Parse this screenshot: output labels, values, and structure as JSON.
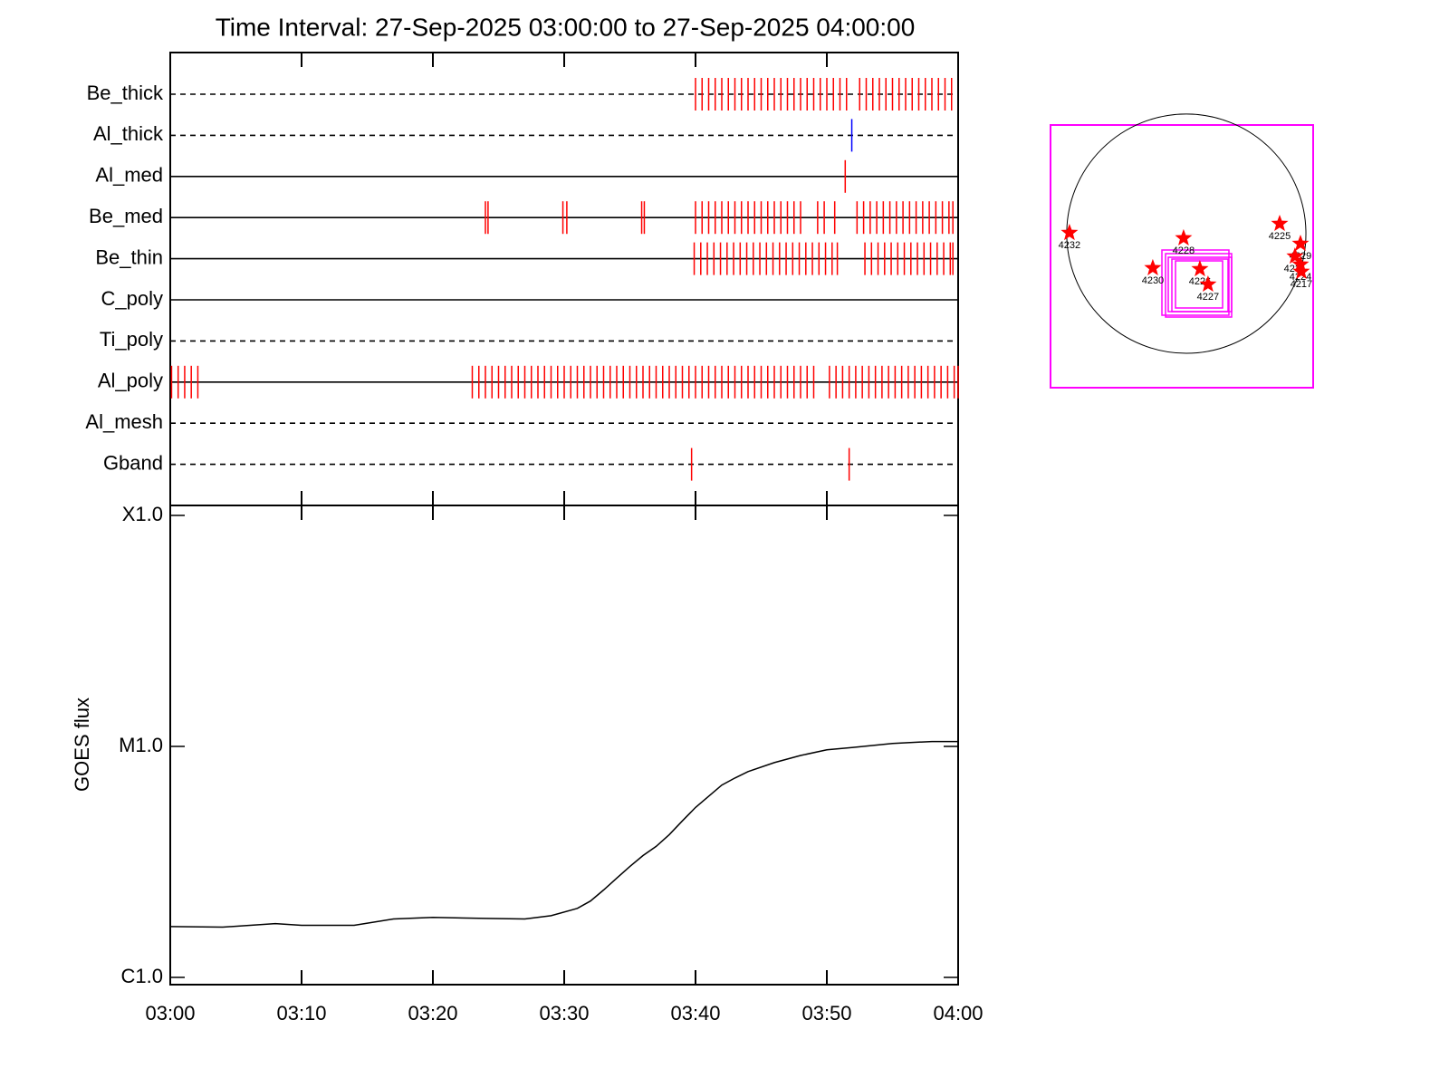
{
  "chart_data": [
    {
      "type": "events",
      "title": "Time Interval: 27-Sep-2025 03:00:00 to 27-Sep-2025 04:00:00",
      "xlim": [
        0,
        60
      ],
      "categories": [
        "Be_thick",
        "Al_thick",
        "Al_med",
        "Be_med",
        "Be_thin",
        "C_poly",
        "Ti_poly",
        "Al_poly",
        "Al_mesh",
        "Gband"
      ],
      "line_styles": [
        "dashed",
        "dashed",
        "solid",
        "solid",
        "solid",
        "solid",
        "dashed",
        "solid",
        "dashed",
        "dashed"
      ],
      "events": [
        {
          "color": "#ff0000",
          "values": [
            40,
            40.5,
            41,
            41.5,
            42,
            42.5,
            43,
            43.5,
            44,
            44.5,
            45,
            45.5,
            46,
            46.5,
            47,
            47.5,
            48,
            48.5,
            49,
            49.5,
            50,
            50.5,
            51,
            51.5,
            52.5,
            53,
            53.5,
            54,
            54.5,
            55,
            55.5,
            56,
            56.5,
            57,
            57.5,
            58,
            58.5,
            59,
            59.5
          ]
        },
        {
          "color": "#0000ff",
          "values": [
            51.9
          ]
        },
        {
          "color": "#ff0000",
          "values": [
            51.4
          ]
        },
        {
          "color": "#ff0000",
          "values": [
            24,
            24.2,
            29.9,
            30.2,
            35.9,
            36.1,
            40,
            40.5,
            41,
            41.5,
            42,
            42.5,
            43,
            43.5,
            44,
            44.5,
            45,
            45.5,
            46,
            46.5,
            47,
            47.5,
            48,
            49.3,
            49.8,
            50.6,
            52.3,
            52.8,
            53.3,
            53.8,
            54.3,
            54.8,
            55.3,
            55.8,
            56.3,
            56.8,
            57.3,
            57.8,
            58.3,
            58.8,
            59.3,
            59.6
          ]
        },
        {
          "color": "#ff0000",
          "values": [
            39.9,
            40.4,
            40.9,
            41.4,
            41.9,
            42.4,
            42.9,
            43.4,
            43.9,
            44.4,
            44.9,
            45.4,
            45.9,
            46.4,
            46.9,
            47.4,
            47.9,
            48.4,
            48.9,
            49.4,
            49.9,
            50.4,
            50.8,
            52.9,
            53.4,
            53.9,
            54.4,
            54.9,
            55.4,
            55.9,
            56.4,
            56.9,
            57.4,
            57.9,
            58.4,
            58.9,
            59.4,
            59.6
          ]
        },
        {
          "color": "#ff0000",
          "values": []
        },
        {
          "color": "#ff0000",
          "values": []
        },
        {
          "color": "#ff0000",
          "values": [
            0.1,
            0.6,
            1.1,
            1.6,
            2.1,
            23,
            23.5,
            24,
            24.5,
            25,
            25.5,
            26,
            26.5,
            27,
            27.5,
            28,
            28.5,
            29,
            29.5,
            30,
            30.5,
            31,
            31.5,
            32,
            32.5,
            33,
            33.5,
            34,
            34.5,
            35,
            35.5,
            36,
            36.5,
            37,
            37.5,
            38,
            38.5,
            39,
            39.5,
            40,
            40.5,
            41,
            41.5,
            42,
            42.5,
            43,
            43.5,
            44,
            44.5,
            45,
            45.5,
            46,
            46.5,
            47,
            47.5,
            48,
            48.5,
            49,
            50.2,
            50.7,
            51.2,
            51.7,
            52.2,
            52.7,
            53.2,
            53.7,
            54.2,
            54.7,
            55.2,
            55.7,
            56.2,
            56.7,
            57.2,
            57.7,
            58.2,
            58.7,
            59.2,
            59.7,
            60
          ]
        },
        {
          "color": "#ff0000",
          "values": []
        },
        {
          "color": "#ff0000",
          "values": [
            39.7,
            51.7
          ]
        }
      ]
    },
    {
      "type": "line",
      "ylabel": "GOES flux",
      "log": true,
      "color": "#000000",
      "xlim": [
        0,
        60
      ],
      "xticks": [
        {
          "value": 0,
          "label": "03:00"
        },
        {
          "value": 10,
          "label": "03:10"
        },
        {
          "value": 20,
          "label": "03:20"
        },
        {
          "value": 30,
          "label": "03:30"
        },
        {
          "value": 40,
          "label": "03:40"
        },
        {
          "value": 50,
          "label": "03:50"
        },
        {
          "value": 60,
          "label": "04:00"
        }
      ],
      "ylim": [
        1e-06,
        0.0001
      ],
      "yticks": [
        {
          "value": 1e-06,
          "label": "C1.0"
        },
        {
          "value": 1e-05,
          "label": "M1.0"
        },
        {
          "value": 0.0001,
          "label": "X1.0"
        }
      ],
      "x": [
        0,
        4,
        8,
        10,
        14,
        17,
        20,
        24,
        27,
        29,
        31,
        32,
        33,
        34,
        35,
        36,
        37,
        38,
        39,
        40,
        41,
        42,
        43,
        44,
        46,
        48,
        50,
        52,
        55,
        58,
        60
      ],
      "values": [
        1.66e-06,
        1.65e-06,
        1.71e-06,
        1.68e-06,
        1.68e-06,
        1.79e-06,
        1.82e-06,
        1.8e-06,
        1.79e-06,
        1.85e-06,
        1.99e-06,
        2.14e-06,
        2.39e-06,
        2.69e-06,
        3.02e-06,
        3.37e-06,
        3.69e-06,
        4.15e-06,
        4.76e-06,
        5.44e-06,
        6.08e-06,
        6.8e-06,
        7.3e-06,
        7.78e-06,
        8.51e-06,
        9.14e-06,
        9.66e-06,
        9.9e-06,
        1.03e-05,
        1.05e-05,
        1.05e-05
      ]
    },
    {
      "type": "sun_map",
      "xlim": [
        -1090,
        1018
      ],
      "ylim": [
        -1236,
        872
      ],
      "solar_radius": 960,
      "color": "#ff0000",
      "labels": [
        "4232",
        "4228",
        "4225",
        "4229",
        "4230",
        "4226",
        "4227",
        "4231",
        "4224",
        "4217"
      ],
      "x": [
        -938,
        -22,
        749,
        916,
        -269,
        109,
        174,
        872,
        916,
        923
      ],
      "y": [
        7,
        -36,
        80,
        -80,
        -276,
        -284,
        -407,
        -182,
        -247,
        -305
      ]
    }
  ]
}
